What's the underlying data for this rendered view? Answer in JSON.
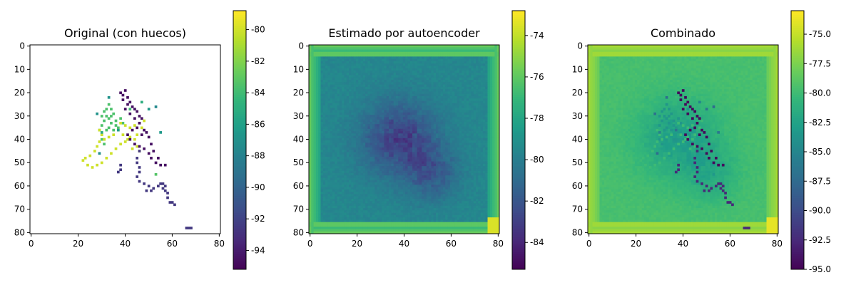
{
  "chart_data": [
    {
      "type": "heatmap",
      "title": "Original (con huecos)",
      "xlabel": "",
      "ylabel": "",
      "xlim": [
        0,
        81
      ],
      "ylim": [
        81,
        0
      ],
      "xticks": [
        "0",
        "20",
        "40",
        "60",
        "80"
      ],
      "yticks": [
        "0",
        "10",
        "20",
        "30",
        "40",
        "50",
        "60",
        "70",
        "80"
      ],
      "colorbar": {
        "min": -95.2,
        "max": -78.8,
        "ticks": [
          "-80",
          "-82",
          "-84",
          "-86",
          "-88",
          "-90",
          "-92",
          "-94"
        ],
        "tick_values": [
          -80,
          -82,
          -84,
          -86,
          -88,
          -90,
          -92,
          -94
        ],
        "colormap": "viridis"
      },
      "background": "missing values (NaN) shown white"
    },
    {
      "type": "heatmap",
      "title": "Estimado por autoencoder",
      "xlabel": "",
      "ylabel": "",
      "xlim": [
        0,
        81
      ],
      "ylim": [
        81,
        0
      ],
      "xticks": [
        "0",
        "20",
        "40",
        "60",
        "80"
      ],
      "yticks": [
        "0",
        "10",
        "20",
        "30",
        "40",
        "50",
        "60",
        "70",
        "80"
      ],
      "colorbar": {
        "min": -85.3,
        "max": -72.8,
        "ticks": [
          "-74",
          "-76",
          "-78",
          "-80",
          "-82",
          "-84"
        ],
        "tick_values": [
          -74,
          -76,
          -78,
          -80,
          -82,
          -84
        ],
        "colormap": "viridis"
      }
    },
    {
      "type": "heatmap",
      "title": "Combinado",
      "xlabel": "",
      "ylabel": "",
      "xlim": [
        0,
        81
      ],
      "ylim": [
        81,
        0
      ],
      "xticks": [
        "0",
        "20",
        "40",
        "60",
        "80"
      ],
      "yticks": [
        "0",
        "10",
        "20",
        "30",
        "40",
        "50",
        "60",
        "70",
        "80"
      ],
      "colorbar": {
        "min": -95.0,
        "max": -73.0,
        "ticks": [
          "-75.0",
          "-77.5",
          "-80.0",
          "-82.5",
          "-85.0",
          "-87.5",
          "-90.0",
          "-92.5",
          "-95.0"
        ],
        "tick_values": [
          -75,
          -77.5,
          -80,
          -82.5,
          -85,
          -87.5,
          -90,
          -92.5,
          -95
        ],
        "colormap": "viridis"
      }
    }
  ]
}
